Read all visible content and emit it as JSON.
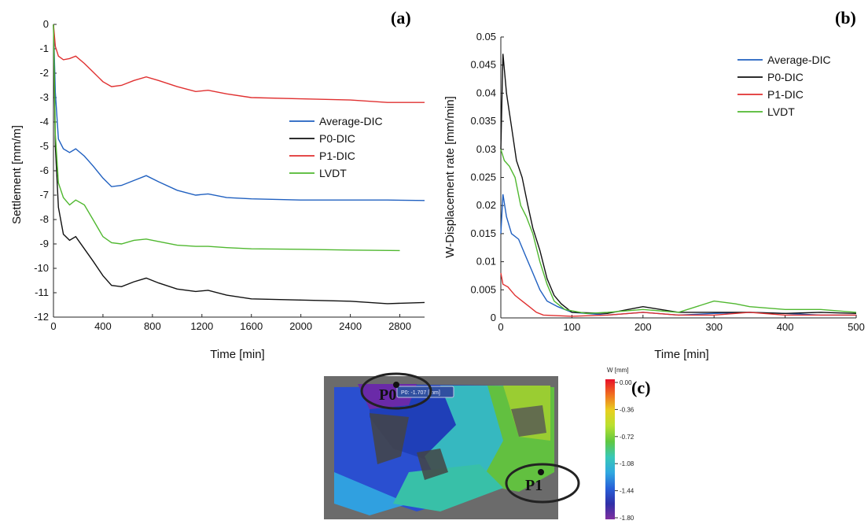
{
  "chart_data": [
    {
      "panel_label": "(a)",
      "type": "line",
      "xlabel": "Time [min]",
      "ylabel": "Settlement [mm/m]",
      "xlim": [
        0,
        3000
      ],
      "ylim": [
        -12,
        0
      ],
      "xticks": [
        "0",
        "400",
        "800",
        "1200",
        "1600",
        "2000",
        "2400",
        "2800"
      ],
      "yticks": [
        "0",
        "-1",
        "-2",
        "-3",
        "-4",
        "-5",
        "-6",
        "-7",
        "-8",
        "-9",
        "-10",
        "-11",
        "-12"
      ],
      "legend_position": "right",
      "grid": false,
      "series": [
        {
          "name": "Average-DIC",
          "color": "#2060c0",
          "points": [
            [
              0,
              0
            ],
            [
              15,
              -2.8
            ],
            [
              40,
              -4.7
            ],
            [
              80,
              -5.1
            ],
            [
              130,
              -5.25
            ],
            [
              180,
              -5.1
            ],
            [
              250,
              -5.4
            ],
            [
              320,
              -5.8
            ],
            [
              400,
              -6.3
            ],
            [
              470,
              -6.65
            ],
            [
              550,
              -6.6
            ],
            [
              650,
              -6.4
            ],
            [
              750,
              -6.2
            ],
            [
              850,
              -6.45
            ],
            [
              1000,
              -6.8
            ],
            [
              1150,
              -7.0
            ],
            [
              1250,
              -6.95
            ],
            [
              1400,
              -7.1
            ],
            [
              1600,
              -7.15
            ],
            [
              2000,
              -7.2
            ],
            [
              2400,
              -7.2
            ],
            [
              2700,
              -7.2
            ],
            [
              3000,
              -7.22
            ]
          ]
        },
        {
          "name": "P0-DIC",
          "color": "#111111",
          "points": [
            [
              0,
              0
            ],
            [
              15,
              -5
            ],
            [
              40,
              -7.5
            ],
            [
              80,
              -8.6
            ],
            [
              130,
              -8.85
            ],
            [
              180,
              -8.7
            ],
            [
              250,
              -9.2
            ],
            [
              320,
              -9.7
            ],
            [
              400,
              -10.3
            ],
            [
              470,
              -10.7
            ],
            [
              550,
              -10.75
            ],
            [
              650,
              -10.55
            ],
            [
              750,
              -10.4
            ],
            [
              850,
              -10.6
            ],
            [
              1000,
              -10.85
            ],
            [
              1150,
              -10.95
            ],
            [
              1250,
              -10.9
            ],
            [
              1400,
              -11.1
            ],
            [
              1600,
              -11.25
            ],
            [
              2000,
              -11.3
            ],
            [
              2400,
              -11.35
            ],
            [
              2700,
              -11.45
            ],
            [
              3000,
              -11.4
            ]
          ]
        },
        {
          "name": "P1-DIC",
          "color": "#e03030",
          "points": [
            [
              0,
              0
            ],
            [
              15,
              -0.9
            ],
            [
              40,
              -1.3
            ],
            [
              80,
              -1.45
            ],
            [
              130,
              -1.4
            ],
            [
              180,
              -1.3
            ],
            [
              250,
              -1.6
            ],
            [
              320,
              -1.95
            ],
            [
              400,
              -2.35
            ],
            [
              470,
              -2.55
            ],
            [
              550,
              -2.5
            ],
            [
              650,
              -2.3
            ],
            [
              750,
              -2.15
            ],
            [
              850,
              -2.3
            ],
            [
              1000,
              -2.55
            ],
            [
              1150,
              -2.75
            ],
            [
              1250,
              -2.7
            ],
            [
              1400,
              -2.85
            ],
            [
              1600,
              -3.0
            ],
            [
              2000,
              -3.05
            ],
            [
              2400,
              -3.1
            ],
            [
              2700,
              -3.2
            ],
            [
              3000,
              -3.2
            ]
          ]
        },
        {
          "name": "LVDT",
          "color": "#50b830",
          "points": [
            [
              0,
              0
            ],
            [
              15,
              -4.5
            ],
            [
              40,
              -6.5
            ],
            [
              80,
              -7.1
            ],
            [
              130,
              -7.4
            ],
            [
              180,
              -7.2
            ],
            [
              250,
              -7.4
            ],
            [
              320,
              -8.0
            ],
            [
              400,
              -8.7
            ],
            [
              470,
              -8.95
            ],
            [
              550,
              -9.0
            ],
            [
              650,
              -8.85
            ],
            [
              750,
              -8.8
            ],
            [
              850,
              -8.9
            ],
            [
              1000,
              -9.05
            ],
            [
              1150,
              -9.1
            ],
            [
              1250,
              -9.1
            ],
            [
              1400,
              -9.15
            ],
            [
              1600,
              -9.2
            ],
            [
              2000,
              -9.22
            ],
            [
              2400,
              -9.25
            ],
            [
              2800,
              -9.27
            ]
          ]
        }
      ]
    },
    {
      "panel_label": "(b)",
      "type": "line",
      "xlabel": "Time [min]",
      "ylabel": "W-Displacement rate [mm/min]",
      "xlim": [
        0,
        500
      ],
      "ylim": [
        0,
        0.05
      ],
      "xticks": [
        "0",
        "100",
        "200",
        "300",
        "400",
        "500"
      ],
      "yticks": [
        "0",
        "0.005",
        "0.01",
        "0.015",
        "0.02",
        "0.025",
        "0.03",
        "0.035",
        "0.04",
        "0.045",
        "0.05"
      ],
      "legend_position": "top-right",
      "grid": false,
      "series": [
        {
          "name": "Average-DIC",
          "color": "#2060c0",
          "points": [
            [
              0,
              0.015
            ],
            [
              3,
              0.022
            ],
            [
              8,
              0.018
            ],
            [
              15,
              0.015
            ],
            [
              25,
              0.014
            ],
            [
              35,
              0.011
            ],
            [
              45,
              0.008
            ],
            [
              55,
              0.005
            ],
            [
              65,
              0.003
            ],
            [
              80,
              0.002
            ],
            [
              100,
              0.001
            ],
            [
              150,
              0.0005
            ],
            [
              200,
              0.001
            ],
            [
              250,
              0.0005
            ],
            [
              300,
              0.0008
            ],
            [
              350,
              0.001
            ],
            [
              400,
              0.0008
            ],
            [
              450,
              0.0005
            ],
            [
              500,
              0.0005
            ]
          ]
        },
        {
          "name": "P0-DIC",
          "color": "#111111",
          "points": [
            [
              0,
              0.03
            ],
            [
              3,
              0.047
            ],
            [
              8,
              0.04
            ],
            [
              15,
              0.034
            ],
            [
              22,
              0.028
            ],
            [
              30,
              0.025
            ],
            [
              38,
              0.02
            ],
            [
              45,
              0.016
            ],
            [
              55,
              0.012
            ],
            [
              65,
              0.007
            ],
            [
              75,
              0.004
            ],
            [
              85,
              0.0025
            ],
            [
              100,
              0.001
            ],
            [
              150,
              0.0008
            ],
            [
              200,
              0.002
            ],
            [
              250,
              0.001
            ],
            [
              300,
              0.001
            ],
            [
              350,
              0.001
            ],
            [
              400,
              0.0008
            ],
            [
              450,
              0.001
            ],
            [
              500,
              0.0008
            ]
          ]
        },
        {
          "name": "P1-DIC",
          "color": "#e03030",
          "points": [
            [
              0,
              0.008
            ],
            [
              3,
              0.006
            ],
            [
              10,
              0.0055
            ],
            [
              20,
              0.004
            ],
            [
              30,
              0.003
            ],
            [
              40,
              0.002
            ],
            [
              50,
              0.001
            ],
            [
              60,
              0.0005
            ],
            [
              100,
              0.0003
            ],
            [
              150,
              0.0005
            ],
            [
              200,
              0.001
            ],
            [
              250,
              0.0005
            ],
            [
              300,
              0.0005
            ],
            [
              350,
              0.001
            ],
            [
              400,
              0.0005
            ],
            [
              450,
              0.0005
            ],
            [
              500,
              0.0005
            ]
          ]
        },
        {
          "name": "LVDT",
          "color": "#50b830",
          "points": [
            [
              0,
              0.03
            ],
            [
              5,
              0.028
            ],
            [
              12,
              0.027
            ],
            [
              20,
              0.025
            ],
            [
              28,
              0.02
            ],
            [
              36,
              0.018
            ],
            [
              45,
              0.015
            ],
            [
              55,
              0.01
            ],
            [
              65,
              0.006
            ],
            [
              75,
              0.003
            ],
            [
              90,
              0.0015
            ],
            [
              120,
              0.0008
            ],
            [
              150,
              0.001
            ],
            [
              200,
              0.0015
            ],
            [
              250,
              0.001
            ],
            [
              300,
              0.003
            ],
            [
              330,
              0.0025
            ],
            [
              350,
              0.002
            ],
            [
              400,
              0.0015
            ],
            [
              450,
              0.0015
            ],
            [
              500,
              0.001
            ]
          ]
        }
      ]
    }
  ],
  "panel_c": {
    "panel_label": "(c)",
    "colorbar_title": "W [mm]",
    "colorbar_ticks": [
      "0.00",
      "-0.36",
      "-0.72",
      "-1.08",
      "-1.44",
      "-1.80"
    ],
    "colorbar_colors": [
      "#e8102a",
      "#f07020",
      "#e8d020",
      "#b8e030",
      "#60c840",
      "#38c8b8",
      "#30a8e0",
      "#2860d8",
      "#3030a8",
      "#8030a0"
    ],
    "point_labels": [
      "P0",
      "P1"
    ],
    "tooltip": "P0: -1.707 [mm]"
  }
}
